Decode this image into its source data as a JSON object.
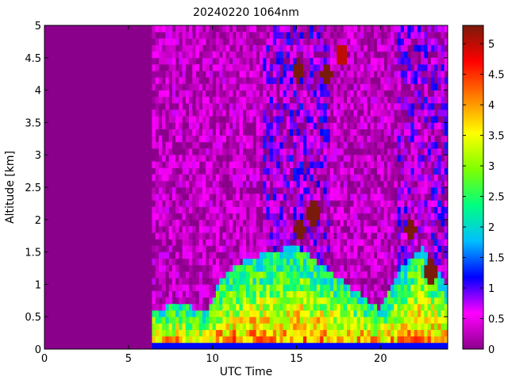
{
  "chart_data": {
    "type": "heatmap",
    "title": "20240220 1064nm",
    "xlabel": "UTC Time",
    "ylabel": "Altitude [km]",
    "xlim": [
      0,
      24
    ],
    "ylim": [
      0,
      5
    ],
    "x_ticks": [
      "0",
      "5",
      "10",
      "15",
      "20"
    ],
    "x_tick_values": [
      0,
      5,
      10,
      15,
      20
    ],
    "y_ticks": [
      "0",
      "0.5",
      "1",
      "1.5",
      "2",
      "2.5",
      "3",
      "3.5",
      "4",
      "4.5",
      "5"
    ],
    "y_tick_values": [
      0,
      0.5,
      1,
      1.5,
      2,
      2.5,
      3,
      3.5,
      4,
      4.5,
      5
    ],
    "colorbar": {
      "range": [
        0,
        5.3
      ],
      "ticks": [
        "0",
        "0.5",
        "1",
        "1.5",
        "2",
        "2.5",
        "3",
        "3.5",
        "4",
        "4.5",
        "5"
      ],
      "tick_values": [
        0,
        0.5,
        1,
        1.5,
        2,
        2.5,
        3,
        3.5,
        4,
        4.5,
        5
      ],
      "colormap": [
        "#8b008b",
        "#ff00ff",
        "#0000ff",
        "#00bfff",
        "#00ff80",
        "#7fff00",
        "#ffff00",
        "#ff8000",
        "#ff0000",
        "#7a1a0a"
      ]
    },
    "background_value": 0.0,
    "data_start_utc": 6.5,
    "boundary_layer_top_km": [
      {
        "x": 6.5,
        "y": 0.6
      },
      {
        "x": 8,
        "y": 0.7
      },
      {
        "x": 9.8,
        "y": 0.6
      },
      {
        "x": 10.5,
        "y": 1.1
      },
      {
        "x": 12,
        "y": 1.4
      },
      {
        "x": 13.5,
        "y": 1.5
      },
      {
        "x": 15,
        "y": 1.6
      },
      {
        "x": 16.5,
        "y": 1.3
      },
      {
        "x": 18,
        "y": 1.0
      },
      {
        "x": 20,
        "y": 0.6
      },
      {
        "x": 21,
        "y": 1.2
      },
      {
        "x": 22.5,
        "y": 1.6
      },
      {
        "x": 24,
        "y": 1.0
      }
    ],
    "clouds": [
      {
        "x": 15.1,
        "y": 4.3,
        "value": 5.3
      },
      {
        "x": 16.8,
        "y": 4.25,
        "value": 5.3
      },
      {
        "x": 17.7,
        "y": 4.55,
        "value": 5.0
      },
      {
        "x": 15.2,
        "y": 1.85,
        "value": 5.3
      },
      {
        "x": 16.0,
        "y": 2.1,
        "value": 5.3
      },
      {
        "x": 21.8,
        "y": 1.85,
        "value": 5.3
      },
      {
        "x": 23.0,
        "y": 1.2,
        "value": 5.3
      }
    ],
    "grid": false
  }
}
